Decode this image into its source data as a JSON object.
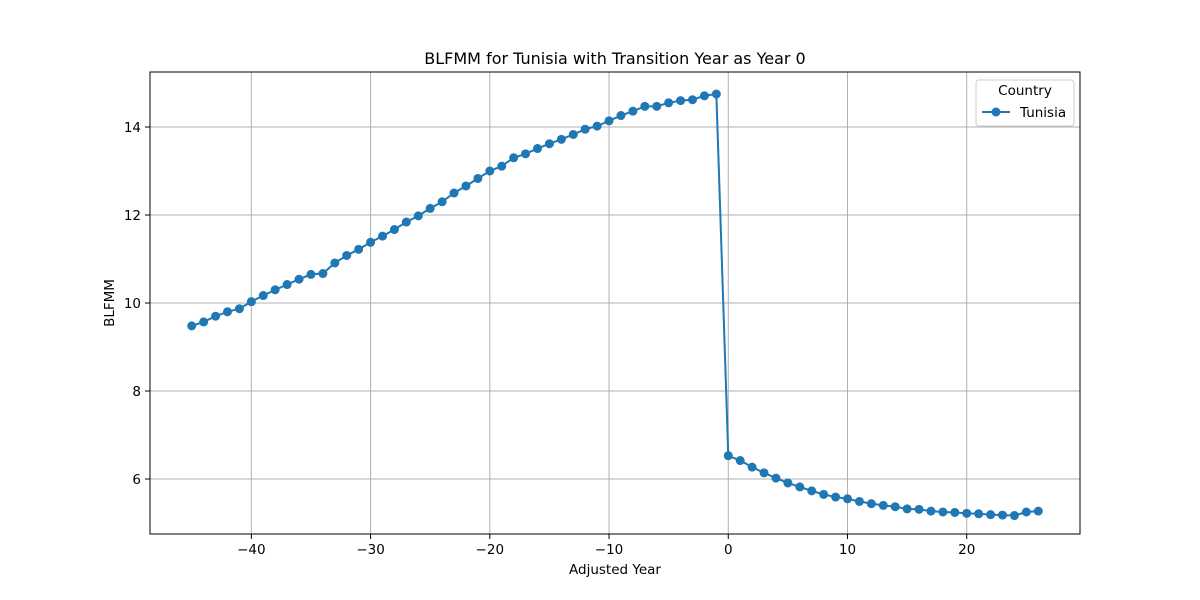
{
  "chart_data": {
    "type": "line",
    "title": "BLFMM for Tunisia with Transition Year as Year 0",
    "xlabel": "Adjusted Year",
    "ylabel": "BLFMM",
    "xlim": [
      -48.5,
      29.5
    ],
    "ylim": [
      4.75,
      15.25
    ],
    "xticks": [
      -40,
      -30,
      -20,
      -10,
      0,
      10,
      20
    ],
    "xtick_labels": [
      "−40",
      "−30",
      "−20",
      "−10",
      "0",
      "10",
      "20"
    ],
    "yticks": [
      6,
      8,
      10,
      12,
      14
    ],
    "ytick_labels": [
      "6",
      "8",
      "10",
      "12",
      "14"
    ],
    "grid": true,
    "legend": {
      "title": "Country",
      "placement": "top-right"
    },
    "series": [
      {
        "name": "Tunisia",
        "color": "#1f77b4",
        "marker": "circle",
        "x": [
          -45,
          -44,
          -43,
          -42,
          -41,
          -40,
          -39,
          -38,
          -37,
          -36,
          -35,
          -34,
          -33,
          -32,
          -31,
          -30,
          -29,
          -28,
          -27,
          -26,
          -25,
          -24,
          -23,
          -22,
          -21,
          -20,
          -19,
          -18,
          -17,
          -16,
          -15,
          -14,
          -13,
          -12,
          -11,
          -10,
          -9,
          -8,
          -7,
          -6,
          -5,
          -4,
          -3,
          -2,
          -1,
          0,
          1,
          2,
          3,
          4,
          5,
          6,
          7,
          8,
          9,
          10,
          11,
          12,
          13,
          14,
          15,
          16,
          17,
          18,
          19,
          20,
          21,
          22,
          23,
          24,
          25,
          26
        ],
        "y": [
          9.48,
          9.57,
          9.7,
          9.8,
          9.87,
          10.03,
          10.17,
          10.3,
          10.42,
          10.54,
          10.65,
          10.67,
          10.91,
          11.08,
          11.22,
          11.38,
          11.52,
          11.67,
          11.84,
          11.98,
          12.15,
          12.3,
          12.5,
          12.66,
          12.83,
          13.0,
          13.11,
          13.3,
          13.39,
          13.51,
          13.62,
          13.72,
          13.83,
          13.95,
          14.02,
          14.14,
          14.26,
          14.36,
          14.47,
          14.47,
          14.55,
          14.6,
          14.62,
          14.71,
          14.75,
          6.53,
          6.42,
          6.27,
          6.14,
          6.02,
          5.91,
          5.82,
          5.73,
          5.65,
          5.59,
          5.55,
          5.49,
          5.44,
          5.4,
          5.37,
          5.32,
          5.31,
          5.27,
          5.25,
          5.24,
          5.22,
          5.21,
          5.19,
          5.18,
          5.17,
          5.25,
          5.27
        ]
      }
    ]
  }
}
